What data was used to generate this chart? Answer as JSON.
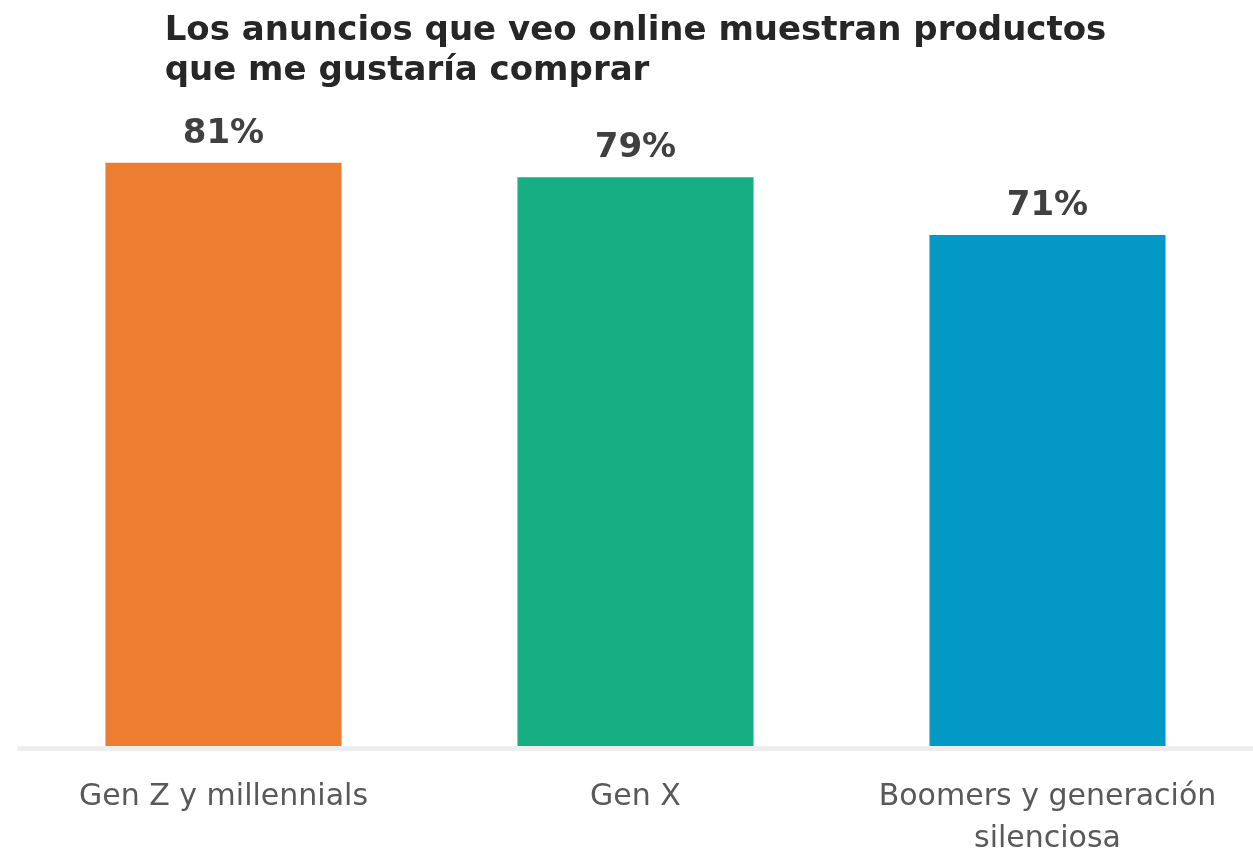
{
  "chart_data": {
    "type": "bar",
    "title": "Los anuncios que veo online muestran productos\nque me gustaría comprar",
    "categories": [
      "Gen Z y millennials",
      "Gen X",
      "Boomers y generación silenciosa"
    ],
    "values": [
      81,
      79,
      71
    ],
    "value_labels": [
      "81%",
      "79%",
      "71%"
    ],
    "colors": [
      "#ed7d31",
      "#17ae84",
      "#0499c4"
    ],
    "grid": false
  }
}
